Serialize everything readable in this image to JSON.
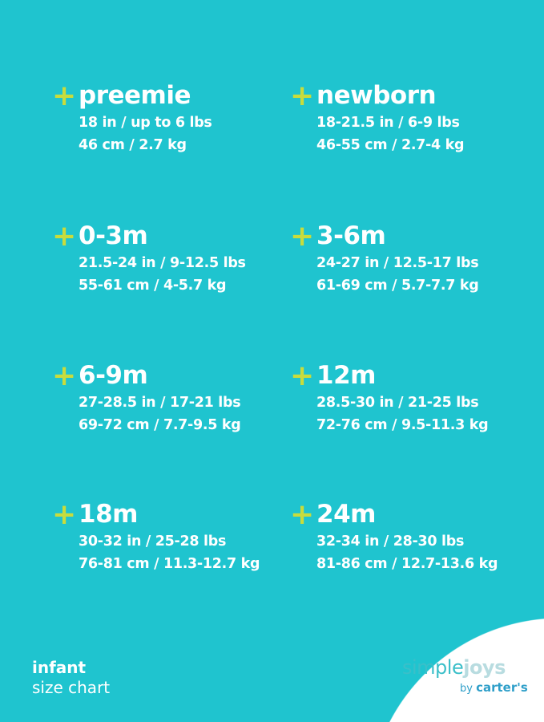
{
  "colors": {
    "background": "#1fc4cf",
    "plus": "#c8dc3c",
    "text": "#ffffff"
  },
  "sizes": [
    {
      "label": "preemie",
      "imperial": "18 in / up to 6 lbs",
      "metric": "46 cm / 2.7 kg"
    },
    {
      "label": "newborn",
      "imperial": "18-21.5 in / 6-9 lbs",
      "metric": "46-55 cm / 2.7-4 kg"
    },
    {
      "label": "0-3m",
      "imperial": "21.5-24 in / 9-12.5 lbs",
      "metric": "55-61 cm / 4-5.7 kg"
    },
    {
      "label": "3-6m",
      "imperial": "24-27 in / 12.5-17 lbs",
      "metric": "61-69 cm / 5.7-7.7 kg"
    },
    {
      "label": "6-9m",
      "imperial": "27-28.5 in / 17-21 lbs",
      "metric": "69-72 cm / 7.7-9.5 kg"
    },
    {
      "label": "12m",
      "imperial": "28.5-30 in / 21-25 lbs",
      "metric": "72-76 cm / 9.5-11.3 kg"
    },
    {
      "label": "18m",
      "imperial": "30-32 in / 25-28 lbs",
      "metric": "76-81 cm / 11.3-12.7 kg"
    },
    {
      "label": "24m",
      "imperial": "32-34 in / 28-30 lbs",
      "metric": "81-86 cm / 12.7-13.6 kg"
    }
  ],
  "plus_symbol": "+",
  "caption": {
    "line1": "infant",
    "line2": "size chart"
  },
  "logo": {
    "simple": "simple",
    "joys": "joys",
    "by": "by",
    "brand": "carter's"
  }
}
